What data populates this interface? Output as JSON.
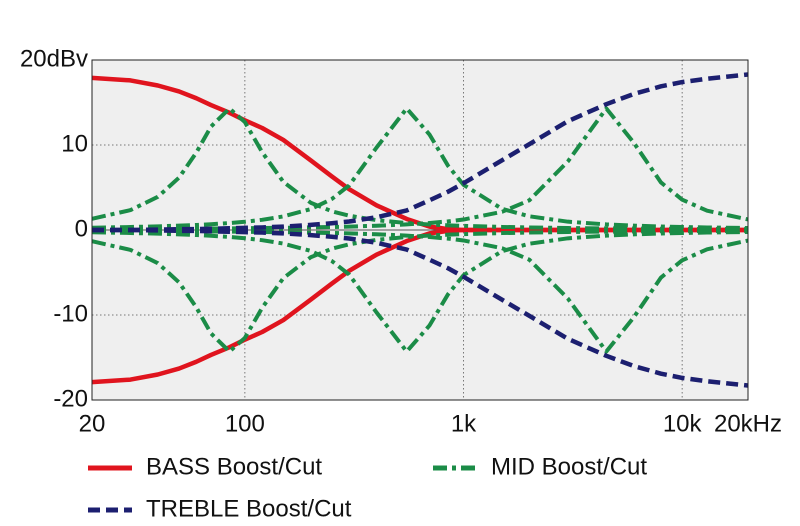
{
  "chart_data": {
    "type": "line",
    "x": [
      20,
      30,
      40,
      50,
      60,
      70,
      85,
      100,
      120,
      150,
      200,
      250,
      300,
      400,
      550,
      700,
      850,
      1000,
      1500,
      2000,
      3000,
      4500,
      6000,
      8000,
      10000,
      13000,
      20000
    ],
    "xlog": true,
    "xlim": [
      20,
      20000
    ],
    "xticks": [
      20,
      100,
      {
        "value": 1000,
        "label": "1k"
      },
      {
        "value": 10000,
        "label": "10k"
      },
      {
        "value": 20000,
        "label": "20kHz"
      }
    ],
    "ylim": [
      -20,
      20
    ],
    "yticks": [
      {
        "value": 20,
        "label": "20dBv"
      },
      10,
      0,
      -10,
      -20
    ],
    "grid": true,
    "series": [
      {
        "name": "BASS Boost/Cut",
        "color": "#e0141e",
        "dash": "solid",
        "curves": [
          [
            17.9,
            17.6,
            17,
            16.3,
            15.5,
            14.7,
            13.8,
            12.9,
            12,
            10.6,
            8.2,
            6.3,
            4.8,
            2.9,
            1.3,
            0.4,
            0.1,
            0,
            0,
            0,
            0,
            0,
            0,
            0,
            0,
            0,
            0
          ],
          [
            -17.9,
            -17.6,
            -17,
            -16.3,
            -15.5,
            -14.7,
            -13.8,
            -12.9,
            -12,
            -10.6,
            -8.2,
            -6.3,
            -4.8,
            -2.9,
            -1.3,
            -0.4,
            -0.1,
            0,
            0,
            0,
            0,
            0,
            0,
            0,
            0,
            0,
            0
          ]
        ]
      },
      {
        "name": "MID Boost/Cut",
        "color": "#1b8c47",
        "dash": "dashdot",
        "curves": [
          [
            1.32,
            2.34,
            3.9,
            6.16,
            9.11,
            12.16,
            14.3,
            12.7,
            9.15,
            5.66,
            3.21,
            2.2,
            1.68,
            1.16,
            0.82,
            0.65,
            0.55,
            0.48,
            0.36,
            0.3,
            0.23,
            0.19,
            0.17,
            0.15,
            0.13,
            0.12,
            0.1
          ],
          [
            -1.32,
            -2.34,
            -3.9,
            -6.16,
            -9.11,
            -12.16,
            -14.3,
            -12.7,
            -9.15,
            -5.66,
            -3.21,
            -2.2,
            -1.68,
            -1.16,
            -0.82,
            -0.65,
            -0.55,
            -0.48,
            -0.36,
            -0.3,
            -0.23,
            -0.19,
            -0.17,
            -0.15,
            -0.13,
            -0.12,
            -0.1
          ],
          [
            0.27,
            0.35,
            0.43,
            0.51,
            0.59,
            0.68,
            0.82,
            0.97,
            1.2,
            1.6,
            2.46,
            3.65,
            5.24,
            9.69,
            14.3,
            11.21,
            7.55,
            5.32,
            2.49,
            1.61,
            0.98,
            0.66,
            0.51,
            0.41,
            0.35,
            0.3,
            0.23
          ],
          [
            -0.27,
            -0.35,
            -0.43,
            -0.51,
            -0.59,
            -0.68,
            -0.82,
            -0.97,
            -1.2,
            -1.6,
            -2.46,
            -3.65,
            -5.24,
            -9.69,
            -14.3,
            -11.21,
            -7.55,
            -5.32,
            -2.49,
            -1.61,
            -0.98,
            -0.66,
            -0.51,
            -0.41,
            -0.35,
            -0.3,
            -0.23
          ],
          [
            0.1,
            0.12,
            0.13,
            0.15,
            0.16,
            0.17,
            0.19,
            0.21,
            0.23,
            0.26,
            0.31,
            0.35,
            0.4,
            0.5,
            0.66,
            0.83,
            1.01,
            1.23,
            2.14,
            3.49,
            8.06,
            14.3,
            10.29,
            5.59,
            3.57,
            2.27,
            1.24
          ],
          [
            -0.1,
            -0.12,
            -0.13,
            -0.15,
            -0.16,
            -0.17,
            -0.19,
            -0.21,
            -0.23,
            -0.26,
            -0.31,
            -0.35,
            -0.4,
            -0.5,
            -0.66,
            -0.83,
            -1.01,
            -1.23,
            -2.14,
            -3.49,
            -8.06,
            -14.3,
            -10.29,
            -5.59,
            -3.57,
            -2.27,
            -1.24
          ]
        ]
      },
      {
        "name": "TREBLE Boost/Cut",
        "color": "#1c1f70",
        "dash": "dashed",
        "curves": [
          [
            0,
            0,
            0.05,
            0.1,
            0.1,
            0.15,
            0.2,
            0.25,
            0.3,
            0.4,
            0.6,
            0.8,
            1,
            1.5,
            2.3,
            3.5,
            4.5,
            5.5,
            8.2,
            10.1,
            12.8,
            14.8,
            16,
            16.9,
            17.4,
            17.8,
            18.3
          ],
          [
            0,
            0,
            -0.05,
            -0.1,
            -0.1,
            -0.15,
            -0.2,
            -0.25,
            -0.3,
            -0.4,
            -0.6,
            -0.8,
            -1,
            -1.5,
            -2.3,
            -3.5,
            -4.5,
            -5.5,
            -8.2,
            -10.1,
            -12.8,
            -14.8,
            -16,
            -16.9,
            -17.4,
            -17.8,
            -18.3
          ]
        ]
      }
    ]
  }
}
